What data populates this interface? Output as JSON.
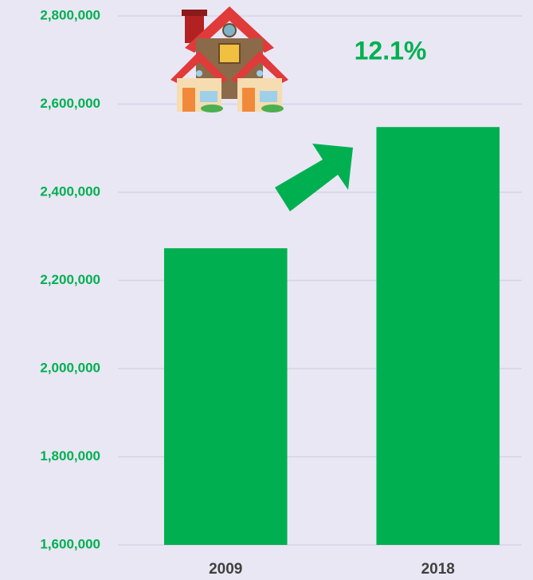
{
  "chart_data": {
    "type": "bar",
    "categories": [
      "2009",
      "2018"
    ],
    "values": [
      2273000,
      2548000
    ],
    "color": "#00b050",
    "annotation": "12.1%",
    "ylim": [
      1600000,
      2800000
    ],
    "yticks": [
      {
        "value": 1600000,
        "label": "1,600,000"
      },
      {
        "value": 1800000,
        "label": "1,800,000"
      },
      {
        "value": 2000000,
        "label": "2,000,000"
      },
      {
        "value": 2200000,
        "label": "2,200,000"
      },
      {
        "value": 2400000,
        "label": "2,400,000"
      },
      {
        "value": 2600000,
        "label": "2,600,000"
      },
      {
        "value": 2800000,
        "label": "2,800,000"
      }
    ],
    "grid": true
  }
}
